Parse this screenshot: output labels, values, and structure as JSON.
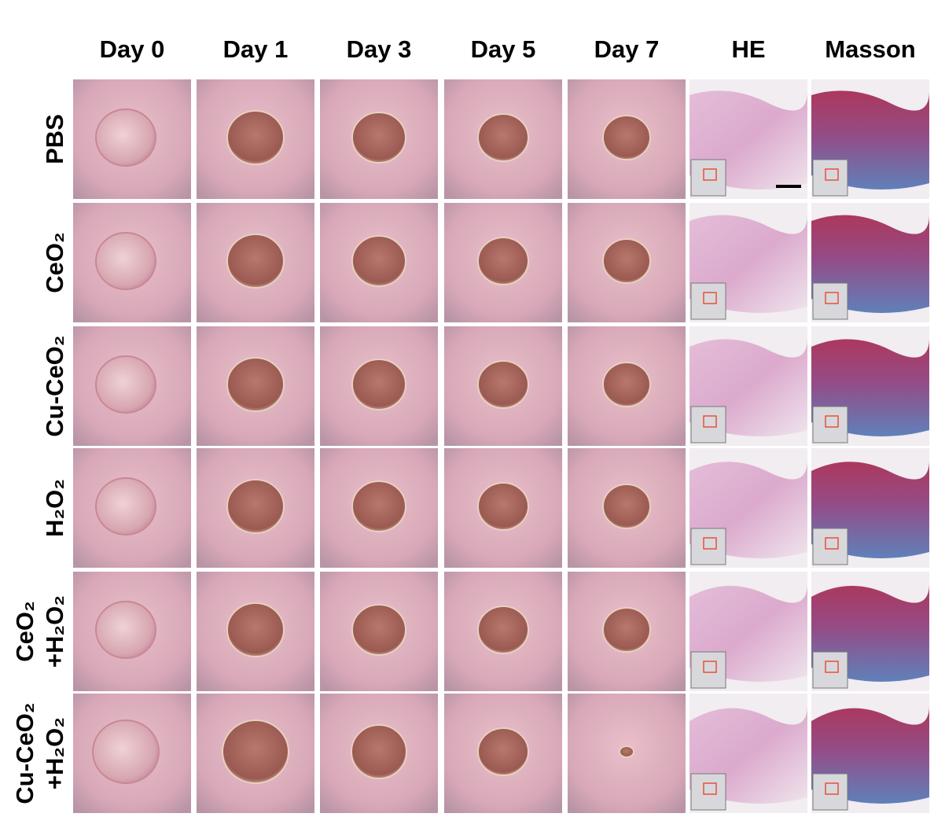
{
  "columns": [
    "Day 0",
    "Day 1",
    "Day 3",
    "Day 5",
    "Day 7",
    "HE",
    "Masson"
  ],
  "rows": [
    [
      "PBS"
    ],
    [
      "CeO₂"
    ],
    [
      "Cu-CeO₂"
    ],
    [
      "H₂O₂"
    ],
    [
      "CeO₂",
      "+H₂O₂"
    ],
    [
      "Cu-CeO₂",
      "+H₂O₂"
    ]
  ]
}
